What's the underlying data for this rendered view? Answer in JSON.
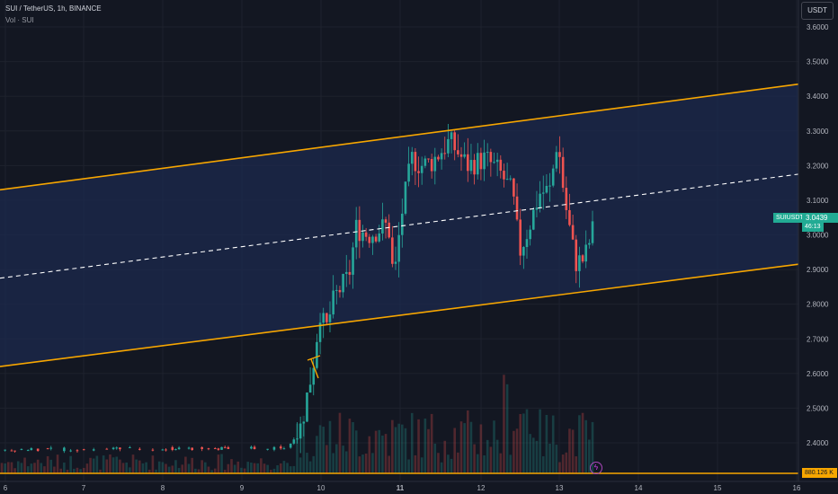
{
  "header": {
    "symbol_line": "SUI / TetherUS, 1h, BINANCE",
    "indicator_line": "Vol · SUI"
  },
  "currency_button": "USDT",
  "last_price": {
    "ticker": "SUIUSDT",
    "value": "3.0439",
    "countdown": "46:13"
  },
  "volume_label": "880.126 K",
  "icons": {
    "flash": "lightning-icon"
  },
  "colors": {
    "background": "#131722",
    "up": "#26a69a",
    "down": "#ef5350",
    "channel": "#f7a600",
    "channel_fill": "#1c2a4d",
    "midline": "#ffffff"
  },
  "chart_data": {
    "type": "candlestick",
    "y_ticks": [
      "3.6000",
      "3.5000",
      "3.4000",
      "3.3000",
      "3.2000",
      "3.1000",
      "3.0000",
      "2.9000",
      "2.8000",
      "2.7000",
      "2.6000",
      "2.5000",
      "2.4000"
    ],
    "x_ticks": [
      "6",
      "7",
      "8",
      "9",
      "10",
      "11",
      "12",
      "13",
      "14",
      "15",
      "16"
    ],
    "ylim": [
      2.31,
      3.65
    ],
    "channel": {
      "upper": [
        [
          0,
          3.13
        ],
        [
          932,
          3.45
        ]
      ],
      "lower": [
        [
          0,
          2.62
        ],
        [
          932,
          2.93
        ]
      ],
      "mid": [
        [
          0,
          2.875
        ],
        [
          932,
          3.19
        ]
      ]
    },
    "candles_unit": "x_index in hours from chart start; OHLC in USDT"
  }
}
